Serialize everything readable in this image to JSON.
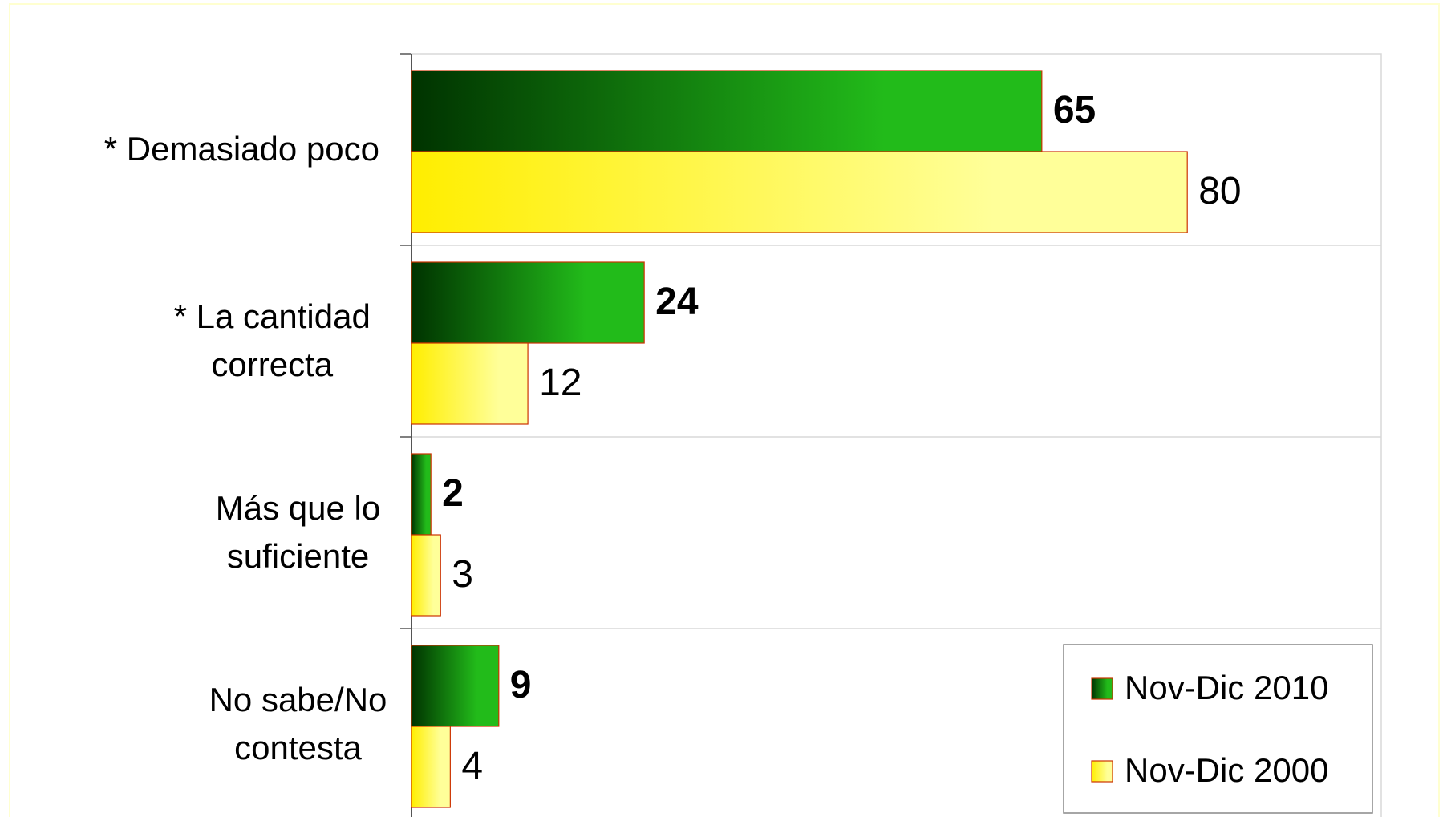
{
  "chart_data": {
    "type": "bar",
    "orientation": "horizontal",
    "categories": [
      "* Demasiado poco",
      "* La cantidad correcta",
      "Más que lo suficiente",
      "No sabe/No contesta"
    ],
    "series": [
      {
        "name": "Nov-Dic 2010",
        "color": "#22bb1a",
        "gradient_from": "#003300",
        "values": [
          65,
          24,
          2,
          9
        ]
      },
      {
        "name": "Nov-Dic 2000",
        "color": "#ffff99",
        "gradient_from": "#ffee00",
        "values": [
          80,
          12,
          3,
          4
        ]
      }
    ],
    "xlim": [
      0,
      100
    ],
    "legend": "lower right"
  }
}
